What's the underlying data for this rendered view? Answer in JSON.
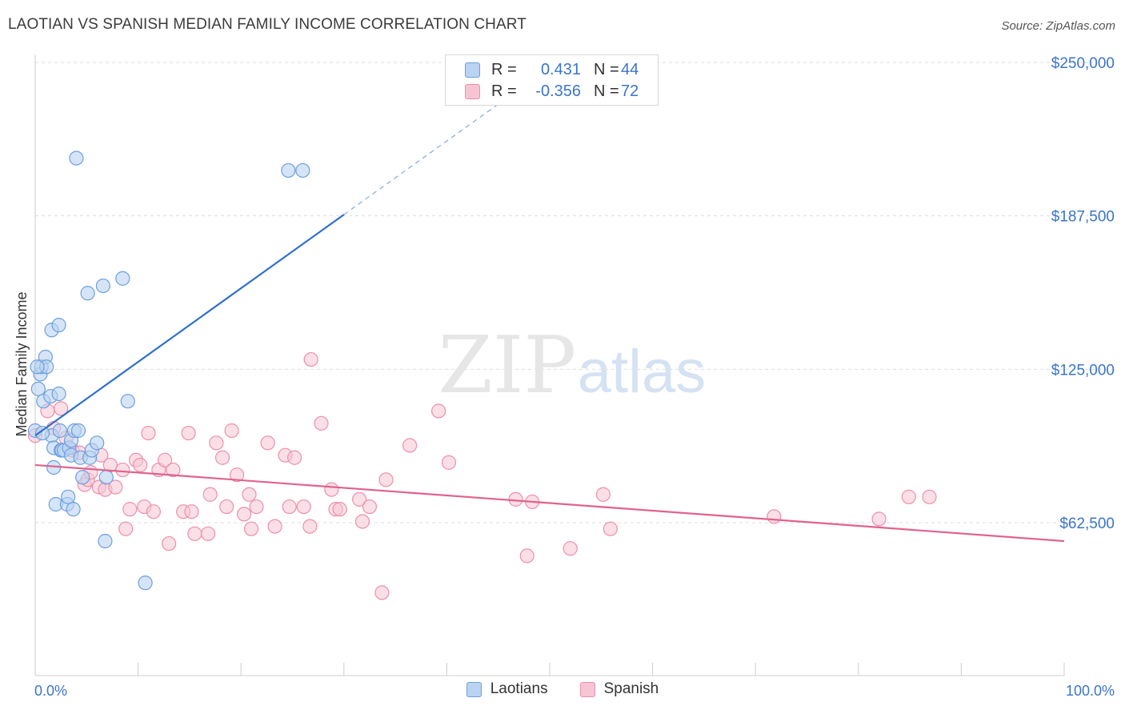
{
  "header": {
    "title": "LAOTIAN VS SPANISH MEDIAN FAMILY INCOME CORRELATION CHART",
    "source": "Source: ZipAtlas.com"
  },
  "watermark": {
    "zip": "ZIP",
    "atlas": "atlas"
  },
  "legend": {
    "rows": [
      {
        "r_label": "R =",
        "r_value": "0.431",
        "n_label": "N =",
        "n_value": "44"
      },
      {
        "r_label": "R =",
        "r_value": "-0.356",
        "n_label": "N =",
        "n_value": "72"
      }
    ]
  },
  "colors": {
    "laotians_fill": "#b9d3f2",
    "laotians_stroke": "#6e9fde",
    "laotians_line": "#2d6fcc",
    "spanish_fill": "#f7c4d3",
    "spanish_stroke": "#ec8fab",
    "spanish_line": "#e0628d",
    "tick_label": "#3b75c9",
    "grid": "#dddddd"
  },
  "chart_data": {
    "type": "scatter",
    "title": "LAOTIAN VS SPANISH MEDIAN FAMILY INCOME CORRELATION CHART",
    "xlabel": "",
    "ylabel": "Median Family Income",
    "xlim": [
      0,
      100
    ],
    "ylim": [
      0,
      260000
    ],
    "x_tick_labels": [
      "0.0%",
      "100.0%"
    ],
    "y_ticks": [
      62500,
      125000,
      187500,
      250000
    ],
    "y_tick_labels": [
      "$62,500",
      "$125,000",
      "$187,500",
      "$250,000"
    ],
    "grid": true,
    "legend": "top-center",
    "series": [
      {
        "name": "Laotians",
        "r": 0.431,
        "n": 44,
        "trend": {
          "x": [
            0,
            30
          ],
          "y": [
            98000,
            188000
          ],
          "extended_to": [
            48,
            242000
          ]
        },
        "points": [
          [
            0.0,
            100000
          ],
          [
            0.3,
            117000
          ],
          [
            0.5,
            123000
          ],
          [
            0.6,
            126000
          ],
          [
            0.8,
            112000
          ],
          [
            1.0,
            130000
          ],
          [
            1.1,
            126000
          ],
          [
            1.5,
            114000
          ],
          [
            1.6,
            141000
          ],
          [
            1.6,
            98000
          ],
          [
            1.8,
            85000
          ],
          [
            1.8,
            93000
          ],
          [
            2.0,
            70000
          ],
          [
            2.3,
            143000
          ],
          [
            2.3,
            115000
          ],
          [
            2.4,
            100000
          ],
          [
            2.5,
            92000
          ],
          [
            2.6,
            92000
          ],
          [
            2.8,
            92000
          ],
          [
            3.1,
            70000
          ],
          [
            3.2,
            73000
          ],
          [
            3.3,
            93000
          ],
          [
            3.5,
            96000
          ],
          [
            3.5,
            90000
          ],
          [
            3.7,
            68000
          ],
          [
            3.8,
            100000
          ],
          [
            4.0,
            211000
          ],
          [
            4.2,
            100000
          ],
          [
            4.4,
            89000
          ],
          [
            4.6,
            81000
          ],
          [
            5.1,
            156000
          ],
          [
            5.3,
            89000
          ],
          [
            5.5,
            92000
          ],
          [
            6.0,
            95000
          ],
          [
            6.6,
            159000
          ],
          [
            6.8,
            55000
          ],
          [
            6.9,
            81000
          ],
          [
            8.5,
            162000
          ],
          [
            9.0,
            112000
          ],
          [
            10.7,
            38000
          ],
          [
            24.6,
            206000
          ],
          [
            26.0,
            206000
          ],
          [
            0.2,
            126000
          ],
          [
            0.7,
            99000
          ]
        ]
      },
      {
        "name": "Spanish",
        "r": -0.356,
        "n": 72,
        "trend": {
          "x": [
            0,
            100
          ],
          "y": [
            86000,
            55000
          ]
        },
        "points": [
          [
            0.0,
            98000
          ],
          [
            1.2,
            108000
          ],
          [
            1.8,
            101000
          ],
          [
            2.5,
            109000
          ],
          [
            3.0,
            97000
          ],
          [
            3.6,
            92000
          ],
          [
            4.3,
            91000
          ],
          [
            4.8,
            78000
          ],
          [
            5.1,
            80000
          ],
          [
            5.4,
            83000
          ],
          [
            6.2,
            77000
          ],
          [
            6.4,
            90000
          ],
          [
            6.8,
            76000
          ],
          [
            7.3,
            86000
          ],
          [
            7.8,
            77000
          ],
          [
            8.5,
            84000
          ],
          [
            8.8,
            60000
          ],
          [
            9.2,
            68000
          ],
          [
            9.8,
            88000
          ],
          [
            10.2,
            86000
          ],
          [
            10.6,
            69000
          ],
          [
            11.0,
            99000
          ],
          [
            11.5,
            67000
          ],
          [
            12.0,
            84000
          ],
          [
            12.6,
            88000
          ],
          [
            13.0,
            54000
          ],
          [
            13.4,
            84000
          ],
          [
            14.4,
            67000
          ],
          [
            14.9,
            99000
          ],
          [
            15.2,
            67000
          ],
          [
            15.5,
            58000
          ],
          [
            16.8,
            58000
          ],
          [
            17.0,
            74000
          ],
          [
            17.6,
            95000
          ],
          [
            18.2,
            89000
          ],
          [
            18.6,
            69000
          ],
          [
            19.1,
            100000
          ],
          [
            19.6,
            82000
          ],
          [
            20.3,
            66000
          ],
          [
            20.8,
            74000
          ],
          [
            21.0,
            60000
          ],
          [
            21.5,
            69000
          ],
          [
            22.6,
            95000
          ],
          [
            23.3,
            61000
          ],
          [
            24.3,
            90000
          ],
          [
            24.7,
            69000
          ],
          [
            25.2,
            89000
          ],
          [
            26.1,
            69000
          ],
          [
            26.7,
            61000
          ],
          [
            26.8,
            129000
          ],
          [
            27.8,
            103000
          ],
          [
            28.8,
            76000
          ],
          [
            29.2,
            68000
          ],
          [
            29.6,
            68000
          ],
          [
            31.5,
            72000
          ],
          [
            31.8,
            63000
          ],
          [
            32.5,
            69000
          ],
          [
            33.7,
            34000
          ],
          [
            34.1,
            80000
          ],
          [
            36.4,
            94000
          ],
          [
            39.2,
            108000
          ],
          [
            40.2,
            87000
          ],
          [
            46.7,
            72000
          ],
          [
            47.8,
            49000
          ],
          [
            48.3,
            71000
          ],
          [
            52.0,
            52000
          ],
          [
            55.2,
            74000
          ],
          [
            55.9,
            60000
          ],
          [
            71.8,
            65000
          ],
          [
            82.0,
            64000
          ],
          [
            84.9,
            73000
          ],
          [
            86.9,
            73000
          ]
        ]
      }
    ]
  },
  "bottom_legend": {
    "laotians": "Laotians",
    "spanish": "Spanish"
  }
}
